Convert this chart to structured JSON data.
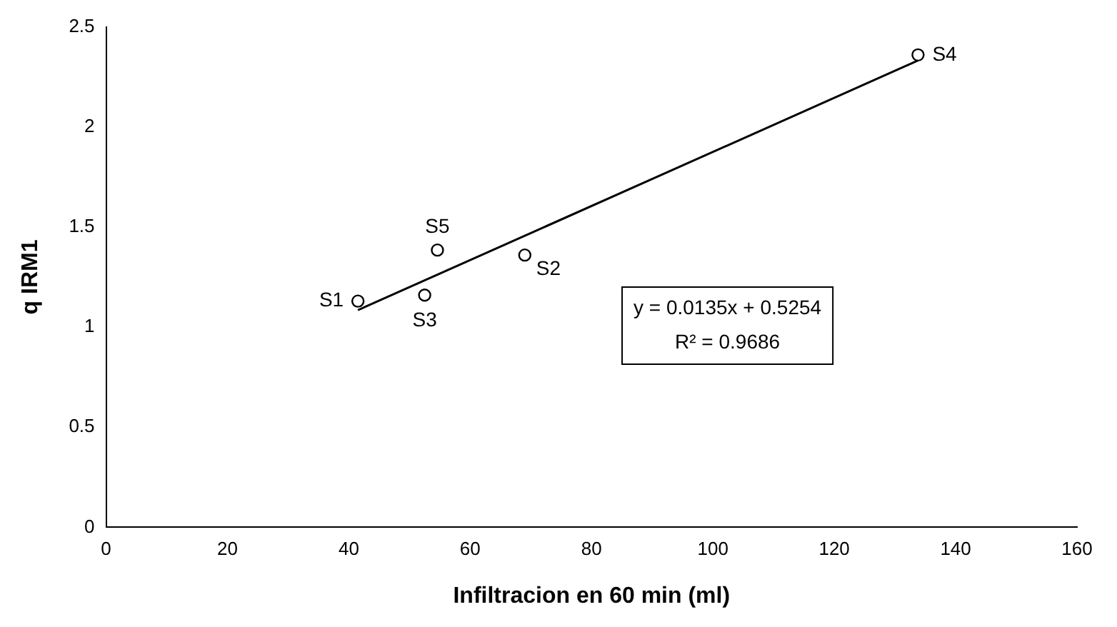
{
  "chart_data": {
    "type": "scatter",
    "xlabel": "Infiltracion en 60 min (ml)",
    "ylabel": "q IRM1",
    "xlim": [
      0,
      160
    ],
    "xticks": [
      0,
      20,
      40,
      60,
      80,
      100,
      120,
      140,
      160
    ],
    "ylim": [
      0,
      2.5
    ],
    "yticks": [
      0,
      0.5,
      1,
      1.5,
      2,
      2.5
    ],
    "grid": false,
    "legend": false,
    "marker": "circle",
    "series": [
      {
        "color": "#000000",
        "x": [
          41.5,
          69,
          52.5,
          133.8,
          54.6
        ],
        "values": [
          1.13,
          1.36,
          1.16,
          2.36,
          1.385
        ]
      },
      {
        "type": "line",
        "color": "#000000",
        "marker": "none",
        "x": [
          41.5,
          133.8
        ],
        "values": [
          1.085,
          2.332
        ]
      }
    ],
    "annotations": [
      {
        "text": "S1",
        "x": 41.5,
        "y": 1.13
      },
      {
        "text": "S2",
        "x": 69,
        "y": 1.36
      },
      {
        "text": "S3",
        "x": 52.5,
        "y": 1.16
      },
      {
        "text": "S4",
        "x": 133.8,
        "y": 2.36
      },
      {
        "text": "S5",
        "x": 54.6,
        "y": 1.385
      },
      "y = 0.0135x + 0.5254",
      "R² = 0.9686"
    ]
  }
}
